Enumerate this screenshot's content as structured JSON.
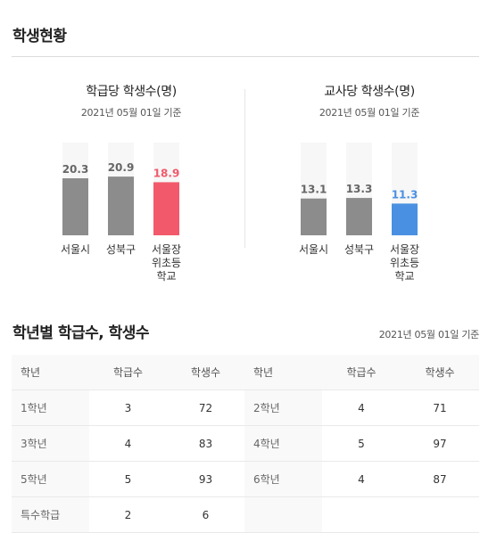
{
  "page_title": "학생현황",
  "charts": [
    {
      "title": "학급당 학생수(명)",
      "date": "2021년 05월 01일 기준",
      "accent": "#f25a6b",
      "bar_color": "#8c8c8c",
      "track_color": "#f7f7f7",
      "label_color": "#666666"
    },
    {
      "title": "교사당 학생수(명)",
      "date": "2021년 05월 01일 기준",
      "accent": "#4a90e2",
      "bar_color": "#8c8c8c",
      "track_color": "#f7f7f7",
      "label_color": "#666666"
    }
  ],
  "chart_data": [
    {
      "type": "bar",
      "title": "학급당 학생수(명)",
      "categories": [
        [
          "서울시"
        ],
        [
          "성북구"
        ],
        [
          "서울장",
          "위초등",
          "학교"
        ]
      ],
      "values": [
        20.3,
        20.9,
        18.9
      ],
      "value_labels": [
        "20.3",
        "20.9",
        "18.9"
      ],
      "highlight_index": 2,
      "ylim": [
        0,
        33
      ]
    },
    {
      "type": "bar",
      "title": "교사당 학생수(명)",
      "categories": [
        [
          "서울시"
        ],
        [
          "성북구"
        ],
        [
          "서울장",
          "위초등",
          "학교"
        ]
      ],
      "values": [
        13.1,
        13.3,
        11.3
      ],
      "value_labels": [
        "13.1",
        "13.3",
        "11.3"
      ],
      "highlight_index": 2,
      "ylim": [
        0,
        33
      ]
    }
  ],
  "grade_section": {
    "title": "학년별 학급수, 학생수",
    "date": "2021년 05월 01일 기준",
    "headers": [
      "학년",
      "학급수",
      "학생수",
      "학년",
      "학급수",
      "학생수"
    ],
    "rows": [
      [
        "1학년",
        "3",
        "72",
        "2학년",
        "4",
        "71"
      ],
      [
        "3학년",
        "4",
        "83",
        "4학년",
        "5",
        "97"
      ],
      [
        "5학년",
        "5",
        "93",
        "6학년",
        "4",
        "87"
      ],
      [
        "특수학급",
        "2",
        "6",
        "",
        "",
        ""
      ]
    ]
  }
}
